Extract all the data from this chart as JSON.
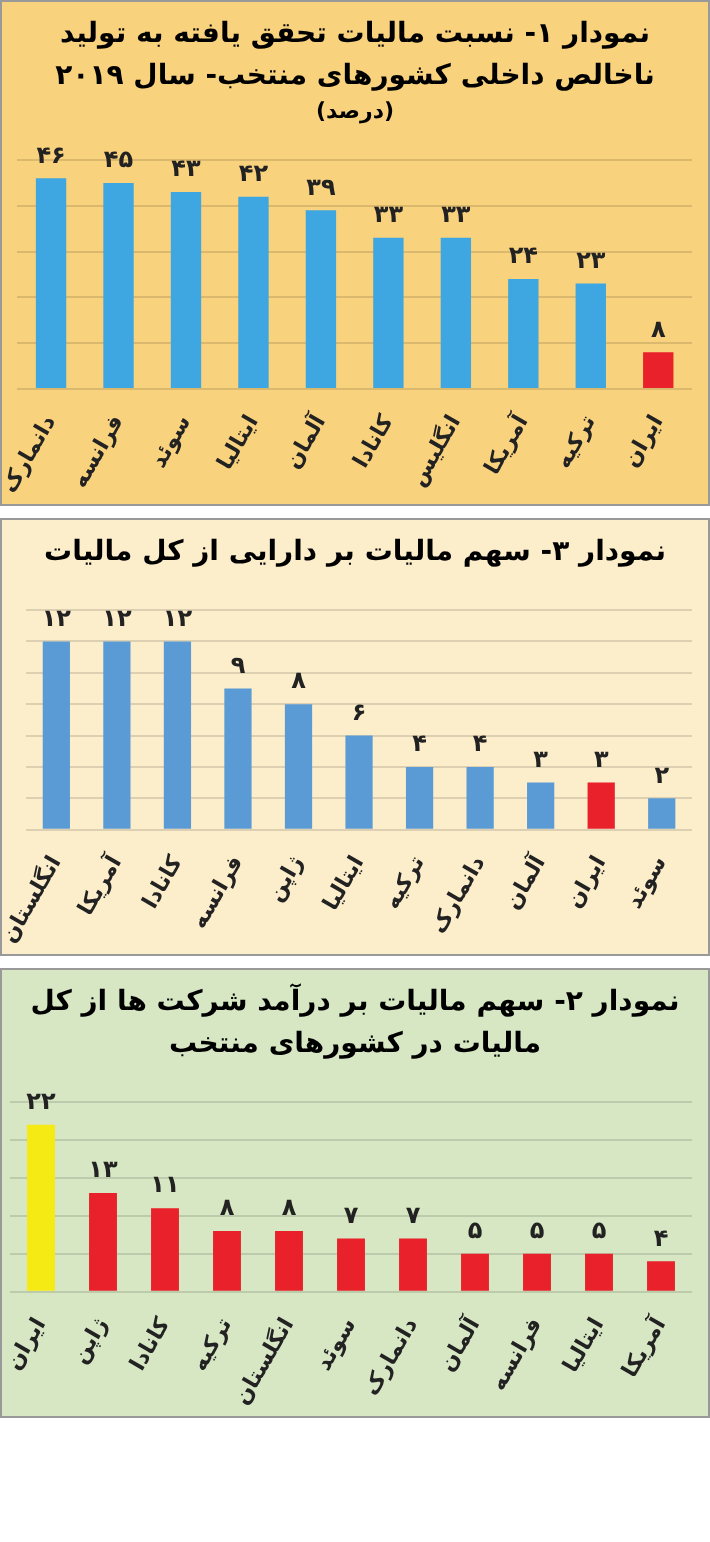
{
  "chart_data": [
    {
      "type": "bar",
      "title": "نمودار ۱- نسبت مالیات تحقق یافته به تولید ناخالص داخلی کشورهای منتخب- سال ۲۰۱۹",
      "subtitle": "(درصد)",
      "categories": [
        "دانمارک",
        "فرانسه",
        "سوئد",
        "ایتالیا",
        "آلمان",
        "کانادا",
        "انگلیس",
        "آمریکا",
        "ترکیه",
        "ایران"
      ],
      "values": [
        46,
        45,
        43,
        42,
        39,
        33,
        33,
        24,
        23,
        8
      ],
      "colors": [
        "#3ea6e0",
        "#3ea6e0",
        "#3ea6e0",
        "#3ea6e0",
        "#3ea6e0",
        "#3ea6e0",
        "#3ea6e0",
        "#3ea6e0",
        "#3ea6e0",
        "#e8212a"
      ],
      "value_labels": [
        "۴۶",
        "۴۵",
        "۴۳",
        "۴۲",
        "۳۹",
        "۳۳",
        "۳۳",
        "۲۴",
        "۲۳",
        "۸"
      ],
      "ylim": [
        0,
        50
      ],
      "yticks": [
        {
          "value": 0,
          "label": null
        },
        {
          "value": 10,
          "label": null
        },
        {
          "value": 20,
          "label": null
        },
        {
          "value": 30,
          "label": null
        },
        {
          "value": 40,
          "label": null
        },
        {
          "value": 50,
          "label": null
        }
      ],
      "tick_labels": "x",
      "grid": "y"
    },
    {
      "type": "bar",
      "title": "نمودار ۳- سهم مالیات بر دارایی از کل مالیات",
      "categories": [
        "انگلستان",
        "آمریکا",
        "کانادا",
        "فرانسه",
        "ژاپن",
        "ایتالیا",
        "ترکیه",
        "دانمارک",
        "آلمان",
        "ایران",
        "سوئد"
      ],
      "values": [
        12,
        12,
        12,
        9,
        8,
        6,
        4,
        4,
        3,
        3,
        2
      ],
      "colors": [
        "#5b9bd5",
        "#5b9bd5",
        "#5b9bd5",
        "#5b9bd5",
        "#5b9bd5",
        "#5b9bd5",
        "#5b9bd5",
        "#5b9bd5",
        "#5b9bd5",
        "#e8212a",
        "#5b9bd5"
      ],
      "value_labels": [
        "۱۲",
        "۱۲",
        "۱۲",
        "۹",
        "۸",
        "۶",
        "۴",
        "۴",
        "۳",
        "۳",
        "۲"
      ],
      "ylim": [
        0,
        14
      ],
      "yticks": [
        {
          "value": 0,
          "label": null
        },
        {
          "value": 2,
          "label": null
        },
        {
          "value": 4,
          "label": null
        },
        {
          "value": 6,
          "label": null
        },
        {
          "value": 8,
          "label": null
        },
        {
          "value": 10,
          "label": null
        },
        {
          "value": 12,
          "label": null
        },
        {
          "value": 14,
          "label": null
        }
      ],
      "tick_labels": "x",
      "grid": "y"
    },
    {
      "type": "bar",
      "title": "نمودار ۲- سهم مالیات بر درآمد شرکت ها از کل مالیات در کشورهای منتخب",
      "categories": [
        "ایران",
        "ژاپن",
        "کانادا",
        "ترکیه",
        "انگلستان",
        "سوئد",
        "دانمارک",
        "آلمان",
        "فرانسه",
        "ایتالیا",
        "آمریکا"
      ],
      "values": [
        22,
        13,
        11,
        8,
        8,
        7,
        7,
        5,
        5,
        5,
        4
      ],
      "colors": [
        "#f5ea14",
        "#e8212a",
        "#e8212a",
        "#e8212a",
        "#e8212a",
        "#e8212a",
        "#e8212a",
        "#e8212a",
        "#e8212a",
        "#e8212a",
        "#e8212a"
      ],
      "value_labels": [
        "۲۲",
        "۱۳",
        "۱۱",
        "۸",
        "۸",
        "۷",
        "۷",
        "۵",
        "۵",
        "۵",
        "۴"
      ],
      "ylim": [
        0,
        25
      ],
      "yticks": [
        {
          "value": 0,
          "label": null
        },
        {
          "value": 5,
          "label": null
        },
        {
          "value": 10,
          "label": null
        },
        {
          "value": 15,
          "label": null
        },
        {
          "value": 20,
          "label": null
        },
        {
          "value": 25,
          "label": null
        }
      ],
      "tick_labels": "x",
      "grid": "y"
    }
  ]
}
